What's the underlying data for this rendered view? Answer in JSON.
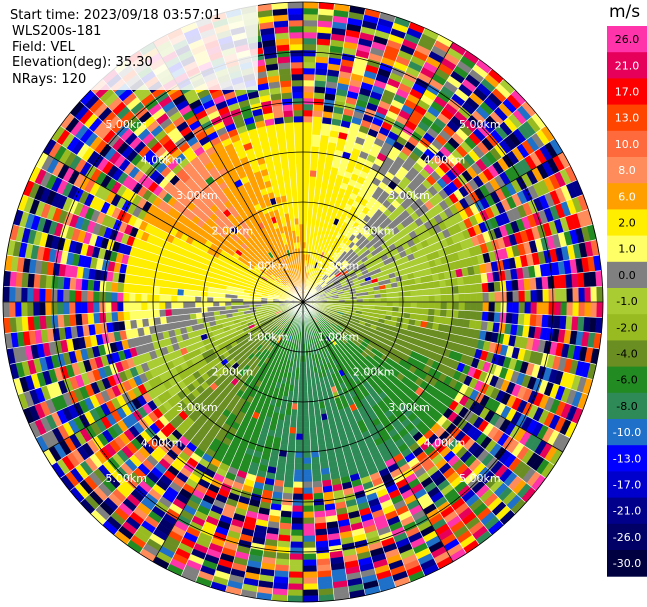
{
  "header": {
    "start_time": "Start time: 2023/09/18 03:57:01",
    "instrument": "WLS200s-181",
    "field": "Field: VEL",
    "elevation": "Elevation(deg): 35.30",
    "nrays": "NRays: 120"
  },
  "colorbar": {
    "unit": "m/s",
    "levels": [
      {
        "label": "26.0",
        "color": "#ff33aa",
        "text_color": "#000000"
      },
      {
        "label": "21.0",
        "color": "#e6005a",
        "text_color": "#ffffff"
      },
      {
        "label": "17.0",
        "color": "#ff0000",
        "text_color": "#ffffff"
      },
      {
        "label": "13.0",
        "color": "#ff4500",
        "text_color": "#ffffff"
      },
      {
        "label": "10.0",
        "color": "#ff6a3c",
        "text_color": "#ffffff"
      },
      {
        "label": "8.0",
        "color": "#ff8c5a",
        "text_color": "#ffffff"
      },
      {
        "label": "6.0",
        "color": "#ffa000",
        "text_color": "#ffffff"
      },
      {
        "label": "2.0",
        "color": "#ffee00",
        "text_color": "#000000"
      },
      {
        "label": "1.0",
        "color": "#ffff66",
        "text_color": "#000000"
      },
      {
        "label": "0.0",
        "color": "#808080",
        "text_color": "#000000"
      },
      {
        "label": "-1.0",
        "color": "#aacc33",
        "text_color": "#000000"
      },
      {
        "label": "-2.0",
        "color": "#99bb22",
        "text_color": "#000000"
      },
      {
        "label": "-4.0",
        "color": "#6b8e23",
        "text_color": "#000000"
      },
      {
        "label": "-6.0",
        "color": "#228b22",
        "text_color": "#000000"
      },
      {
        "label": "-8.0",
        "color": "#2e8b57",
        "text_color": "#000000"
      },
      {
        "label": "-10.0",
        "color": "#1e70c8",
        "text_color": "#ffffff"
      },
      {
        "label": "-13.0",
        "color": "#0000ff",
        "text_color": "#ffffff"
      },
      {
        "label": "-17.0",
        "color": "#0000cd",
        "text_color": "#ffffff"
      },
      {
        "label": "-21.0",
        "color": "#00008b",
        "text_color": "#ffffff"
      },
      {
        "label": "-26.0",
        "color": "#000066",
        "text_color": "#ffffff"
      },
      {
        "label": "-30.0",
        "color": "#000040",
        "text_color": "#ffffff"
      }
    ]
  },
  "chart_data": {
    "type": "heatmap",
    "projection": "polar-ppi",
    "field": "VEL",
    "units": "m/s",
    "n_rays": 120,
    "elevation_deg": 35.3,
    "max_range_km": 6.0,
    "range_rings_km": [
      1,
      2,
      3,
      4,
      5,
      6
    ],
    "range_labels": [
      "1.00km",
      "2.00km",
      "3.00km",
      "4.00km",
      "5.00km"
    ],
    "velocity_pattern": [
      {
        "azimuth_deg": 0,
        "near_ms": 8.0,
        "far_ms": 2.0
      },
      {
        "azimuth_deg": 45,
        "near_ms": 1.0,
        "far_ms": 0.0
      },
      {
        "azimuth_deg": 90,
        "near_ms": 0.0,
        "far_ms": -2.0
      },
      {
        "azimuth_deg": 135,
        "near_ms": -4.0,
        "far_ms": -6.0
      },
      {
        "azimuth_deg": 180,
        "near_ms": -6.0,
        "far_ms": -8.0
      },
      {
        "azimuth_deg": 225,
        "near_ms": -4.0,
        "far_ms": -2.0
      },
      {
        "azimuth_deg": 270,
        "near_ms": 0.0,
        "far_ms": 2.0
      },
      {
        "azimuth_deg": 315,
        "near_ms": 6.0,
        "far_ms": 10.0
      }
    ],
    "valid_data_range_km": 3.6,
    "noise_beyond_km": 3.6
  }
}
